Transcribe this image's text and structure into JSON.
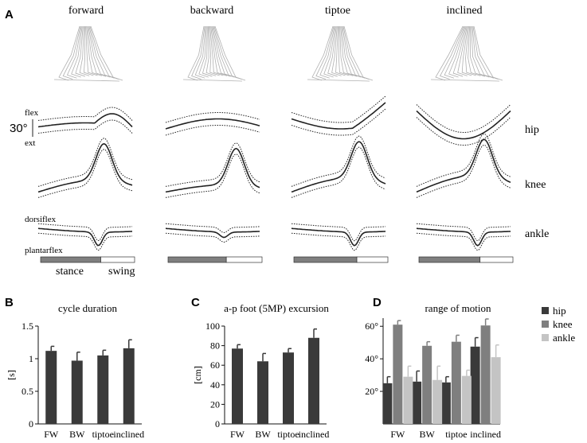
{
  "panel_labels": {
    "a": "A",
    "b": "B",
    "c": "C",
    "d": "D"
  },
  "conditions": [
    "forward",
    "backward",
    "tiptoe",
    "inclined"
  ],
  "joints": [
    "hip",
    "knee",
    "ankle"
  ],
  "scale": {
    "value": "30°",
    "flex": "flex",
    "ext": "ext",
    "dorsiflex": "dorsiflex",
    "plantarflex": "plantarflex"
  },
  "phase": {
    "stance": "stance",
    "swing": "swing",
    "stance_fraction": [
      0.64,
      0.62,
      0.67,
      0.65
    ]
  },
  "colors": {
    "bar_dark": "#3a3a3a",
    "bar_mid": "#7f7f7f",
    "bar_light": "#c4c4c4",
    "line": "#222222",
    "stick": "#b0b0b0"
  },
  "chart_data": [
    {
      "type": "bar",
      "title": "cycle duration",
      "ylabel": "[s]",
      "categories": [
        "FW",
        "BW",
        "tiptoe",
        "inclined"
      ],
      "values": [
        1.12,
        0.97,
        1.05,
        1.16
      ],
      "errors": [
        0.07,
        0.13,
        0.08,
        0.13
      ],
      "ylim": [
        0,
        1.5
      ],
      "yticks": [
        "0",
        "0.5",
        "1",
        "1.5"
      ]
    },
    {
      "type": "bar",
      "title": "a-p foot (5MP) excursion",
      "ylabel": "[cm]",
      "categories": [
        "FW",
        "BW",
        "tiptoe",
        "inclined"
      ],
      "values": [
        77,
        64,
        73,
        88
      ],
      "errors": [
        4,
        8,
        4,
        9
      ],
      "ylim": [
        0,
        100
      ],
      "yticks": [
        "0",
        "20",
        "40",
        "60",
        "80",
        "100"
      ]
    },
    {
      "type": "bar",
      "title": "range of motion",
      "categories": [
        "FW",
        "BW",
        "tiptoe",
        "inclined"
      ],
      "series": [
        {
          "name": "hip",
          "values": [
            25,
            26,
            25.5,
            47.5
          ],
          "errors": [
            4,
            6.5,
            3.5,
            5.5
          ]
        },
        {
          "name": "knee",
          "values": [
            61,
            48,
            50.5,
            60.5
          ],
          "errors": [
            2.5,
            2.5,
            4,
            4
          ]
        },
        {
          "name": "ankle",
          "values": [
            29,
            27,
            29.5,
            41
          ],
          "errors": [
            6.5,
            8.5,
            3.5,
            7.5
          ]
        }
      ],
      "ylim": [
        0,
        65
      ],
      "yticks": [
        "20°",
        "40°",
        "60°"
      ]
    }
  ]
}
